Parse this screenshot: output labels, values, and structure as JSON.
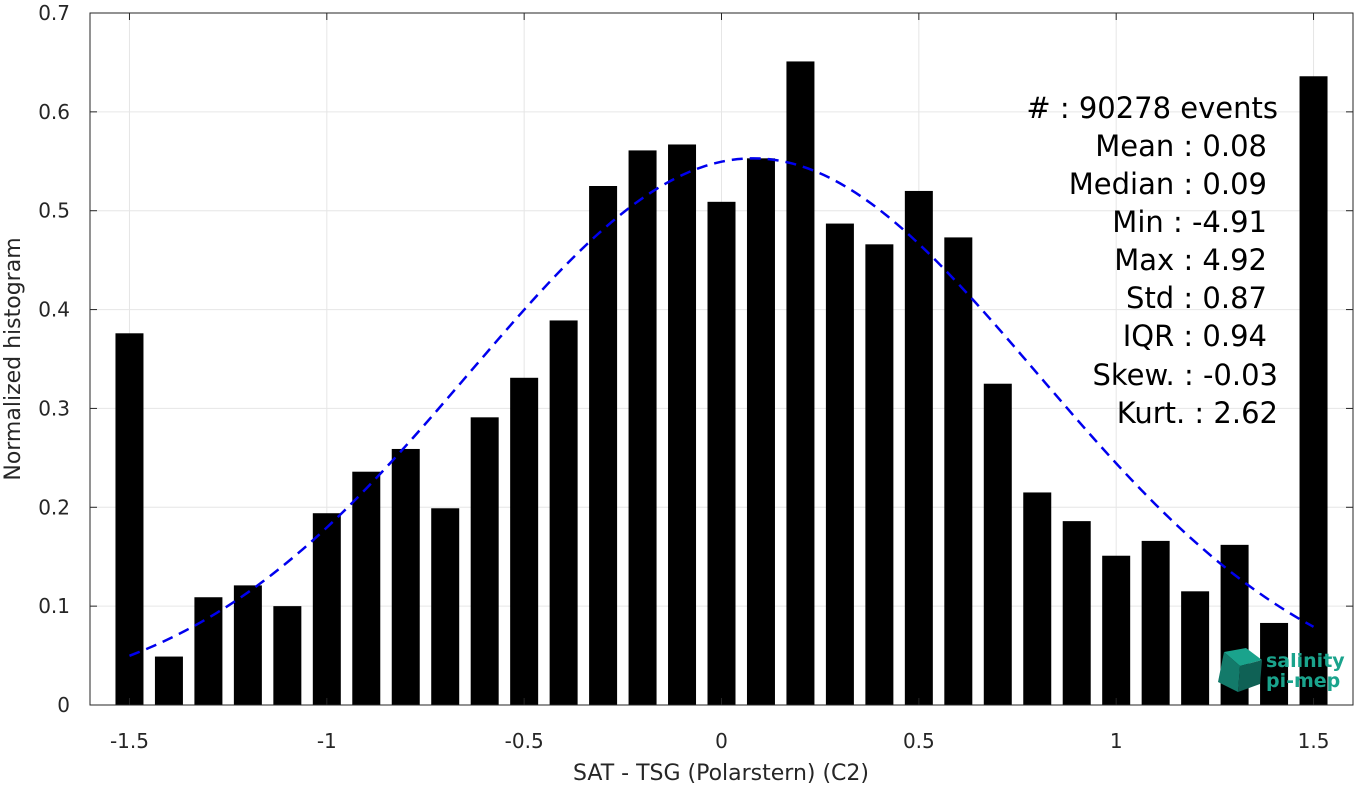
{
  "chart_data": {
    "type": "bar",
    "xlabel": "SAT - TSG (Polarstern) (C2)",
    "ylabel": "Normalized histogram",
    "xlim": [
      -1.6,
      1.6
    ],
    "ylim": [
      0,
      0.7
    ],
    "x_ticks": [
      -1.5,
      -1,
      -0.5,
      0,
      0.5,
      1,
      1.5
    ],
    "x_tick_labels": [
      "-1.5",
      "-1",
      "-0.5",
      "0",
      "0.5",
      "1",
      "1.5"
    ],
    "y_ticks": [
      0,
      0.1,
      0.2,
      0.3,
      0.4,
      0.5,
      0.6,
      0.7
    ],
    "y_tick_labels": [
      "0",
      "0.1",
      "0.2",
      "0.3",
      "0.4",
      "0.5",
      "0.6",
      "0.7"
    ],
    "grid": true,
    "bar_color": "#000000",
    "x": [
      -1.5,
      -1.4,
      -1.3,
      -1.2,
      -1.1,
      -1.0,
      -0.9,
      -0.8,
      -0.7,
      -0.6,
      -0.5,
      -0.4,
      -0.3,
      -0.2,
      -0.1,
      0.0,
      0.1,
      0.2,
      0.3,
      0.4,
      0.5,
      0.6,
      0.7,
      0.8,
      0.9,
      1.0,
      1.1,
      1.2,
      1.3,
      1.4,
      1.5
    ],
    "values": [
      0.376,
      0.049,
      0.109,
      0.121,
      0.1,
      0.194,
      0.236,
      0.259,
      0.199,
      0.291,
      0.331,
      0.389,
      0.525,
      0.561,
      0.567,
      0.509,
      0.553,
      0.651,
      0.487,
      0.466,
      0.52,
      0.473,
      0.325,
      0.215,
      0.186,
      0.151,
      0.166,
      0.115,
      0.162,
      0.083,
      0.636
    ],
    "fit_curve": {
      "style": "dashed",
      "color": "#0000ee",
      "mean": 0.08,
      "std": 0.72,
      "peak": 0.553,
      "x_range": [
        -1.5,
        1.5
      ]
    }
  },
  "stats": [
    {
      "label": "#  : 90278 events"
    },
    {
      "label": "Mean : 0.08"
    },
    {
      "label": "Median : 0.09"
    },
    {
      "label": "Min : -4.91"
    },
    {
      "label": "Max : 4.92"
    },
    {
      "label": "Std : 0.87"
    },
    {
      "label": "IQR : 0.94"
    },
    {
      "label": "Skew. : -0.03"
    },
    {
      "label": "Kurt. : 2.62"
    }
  ],
  "logo": {
    "line1": "salinity",
    "line2": "pi-mep",
    "color": "#1aa38c"
  }
}
